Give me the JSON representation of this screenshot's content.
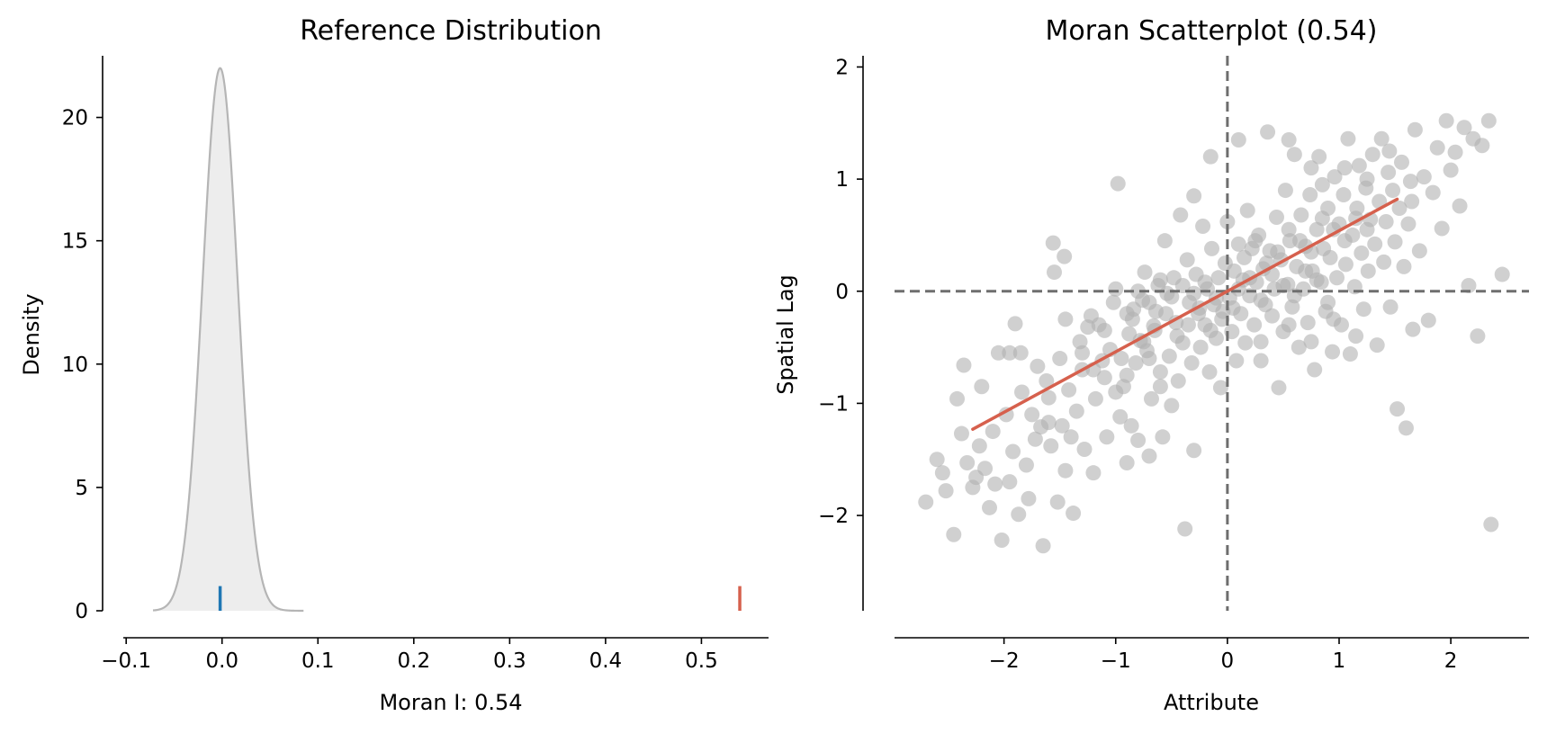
{
  "colors": {
    "kde_fill": "#ededed",
    "kde_line": "#b5b5b5",
    "expected_marker": "#1f77b4",
    "observed_marker": "#d6604d",
    "points": "#b0b0b0",
    "regression": "#d6604d",
    "mean_lines": "#6e6e6e"
  },
  "chart_data": [
    {
      "type": "area",
      "title": "Reference Distribution",
      "xlabel": "Moran I: 0.54",
      "ylabel": "Density",
      "xlim": [
        -0.103,
        0.57
      ],
      "ylim": [
        0,
        22.5
      ],
      "xticks": [
        -0.1,
        0.0,
        0.1,
        0.2,
        0.3,
        0.4,
        0.5
      ],
      "xtick_labels": [
        "−0.1",
        "0.0",
        "0.1",
        "0.2",
        "0.3",
        "0.4",
        "0.5"
      ],
      "yticks": [
        0,
        5,
        10,
        15,
        20
      ],
      "ytick_labels": [
        "0",
        "5",
        "10",
        "15",
        "20"
      ],
      "kde": {
        "mean": -0.002,
        "sd": 0.0183,
        "peak": 22.0,
        "x_min": -0.072,
        "x_max": 0.085
      },
      "markers": [
        {
          "name": "expected",
          "x": -0.002,
          "height": 1.0
        },
        {
          "name": "observed",
          "x": 0.54,
          "height": 1.0
        }
      ]
    },
    {
      "type": "scatter",
      "title": "Moran Scatterplot (0.54)",
      "xlabel": "Attribute",
      "ylabel": "Spatial Lag",
      "xlim": [
        -2.98,
        2.7
      ],
      "ylim": [
        -2.85,
        2.1
      ],
      "xticks": [
        -2,
        -1,
        0,
        1,
        2
      ],
      "xtick_labels": [
        "−2",
        "−1",
        "0",
        "1",
        "2"
      ],
      "yticks": [
        -2,
        -1,
        0,
        1,
        2
      ],
      "ytick_labels": [
        "−2",
        "−1",
        "0",
        "1",
        "2"
      ],
      "regression": {
        "slope": 0.54,
        "x_start": -2.28,
        "x_end": 1.52
      },
      "reference_lines": {
        "x": 0,
        "y": 0
      },
      "points": [
        [
          -2.7,
          -1.88
        ],
        [
          -2.6,
          -1.5
        ],
        [
          -2.55,
          -1.62
        ],
        [
          -2.52,
          -1.78
        ],
        [
          -2.45,
          -2.17
        ],
        [
          -2.42,
          -0.96
        ],
        [
          -2.38,
          -1.27
        ],
        [
          -2.36,
          -0.66
        ],
        [
          -2.33,
          -1.53
        ],
        [
          -2.28,
          -1.75
        ],
        [
          -2.25,
          -1.66
        ],
        [
          -2.22,
          -1.38
        ],
        [
          -2.2,
          -0.85
        ],
        [
          -2.17,
          -1.58
        ],
        [
          -2.13,
          -1.93
        ],
        [
          -2.08,
          -1.72
        ],
        [
          -2.05,
          -0.55
        ],
        [
          -2.02,
          -2.22
        ],
        [
          -1.98,
          -1.1
        ],
        [
          -1.95,
          -0.55
        ],
        [
          -1.92,
          -1.43
        ],
        [
          -1.9,
          -0.29
        ],
        [
          -1.87,
          -1.99
        ],
        [
          -1.84,
          -0.9
        ],
        [
          -1.8,
          -1.55
        ],
        [
          -1.78,
          -1.85
        ],
        [
          -1.75,
          -1.1
        ],
        [
          -1.72,
          -1.32
        ],
        [
          -1.7,
          -0.67
        ],
        [
          -1.67,
          -1.21
        ],
        [
          -1.65,
          -2.27
        ],
        [
          -1.62,
          -0.8
        ],
        [
          -1.6,
          -1.17
        ],
        [
          -1.58,
          -1.38
        ],
        [
          -1.56,
          0.43
        ],
        [
          -1.55,
          0.17
        ],
        [
          -1.52,
          -1.88
        ],
        [
          -1.5,
          -0.6
        ],
        [
          -1.48,
          -1.2
        ],
        [
          -1.46,
          0.31
        ],
        [
          -1.45,
          -0.25
        ],
        [
          -1.42,
          -0.88
        ],
        [
          -1.4,
          -1.3
        ],
        [
          -1.38,
          -1.98
        ],
        [
          -1.35,
          -1.07
        ],
        [
          -1.32,
          -0.45
        ],
        [
          -1.3,
          -0.7
        ],
        [
          -1.28,
          -1.41
        ],
        [
          -1.25,
          -0.32
        ],
        [
          -1.22,
          -0.22
        ],
        [
          -1.2,
          -1.62
        ],
        [
          -1.18,
          -0.96
        ],
        [
          -1.15,
          -0.3
        ],
        [
          -1.12,
          -0.62
        ],
        [
          -1.1,
          -0.77
        ],
        [
          -1.08,
          -1.3
        ],
        [
          -1.05,
          -0.52
        ],
        [
          -1.02,
          -0.1
        ],
        [
          -1.0,
          0.02
        ],
        [
          -0.98,
          0.96
        ],
        [
          -0.96,
          -1.12
        ],
        [
          -0.93,
          -0.85
        ],
        [
          -0.9,
          -1.53
        ],
        [
          -0.88,
          -0.38
        ],
        [
          -0.86,
          -1.2
        ],
        [
          -0.84,
          -0.16
        ],
        [
          -0.82,
          -0.64
        ],
        [
          -0.8,
          -1.33
        ],
        [
          -0.78,
          -0.44
        ],
        [
          -0.76,
          -0.08
        ],
        [
          -0.74,
          0.17
        ],
        [
          -0.72,
          -0.53
        ],
        [
          -0.7,
          -1.47
        ],
        [
          -0.68,
          -0.96
        ],
        [
          -0.66,
          -0.31
        ],
        [
          -0.64,
          -0.18
        ],
        [
          -0.62,
          0.05
        ],
        [
          -0.6,
          -0.72
        ],
        [
          -0.58,
          -1.3
        ],
        [
          -0.56,
          0.45
        ],
        [
          -0.54,
          -0.02
        ],
        [
          -0.52,
          -0.58
        ],
        [
          -0.5,
          -1.02
        ],
        [
          -0.48,
          0.12
        ],
        [
          -0.46,
          -0.28
        ],
        [
          -0.44,
          -0.8
        ],
        [
          -0.42,
          0.68
        ],
        [
          -0.4,
          -0.46
        ],
        [
          -0.38,
          -2.12
        ],
        [
          -0.36,
          0.28
        ],
        [
          -0.34,
          -0.1
        ],
        [
          -0.32,
          -0.64
        ],
        [
          -0.3,
          -1.42
        ],
        [
          -0.28,
          0.15
        ],
        [
          -0.26,
          -0.2
        ],
        [
          -0.24,
          -0.5
        ],
        [
          -0.22,
          0.58
        ],
        [
          -0.2,
          -0.3
        ],
        [
          -0.18,
          0.02
        ],
        [
          -0.16,
          -0.72
        ],
        [
          -0.14,
          0.38
        ],
        [
          -0.12,
          -0.12
        ],
        [
          -0.1,
          -0.42
        ],
        [
          -0.08,
          0.12
        ],
        [
          -0.06,
          -0.86
        ],
        [
          -0.04,
          -0.18
        ],
        [
          -0.02,
          0.25
        ],
        [
          0.0,
          0.62
        ],
        [
          0.02,
          -0.06
        ],
        [
          0.04,
          -0.36
        ],
        [
          0.06,
          0.18
        ],
        [
          0.08,
          -0.62
        ],
        [
          0.1,
          0.42
        ],
        [
          0.12,
          -0.2
        ],
        [
          0.14,
          0.1
        ],
        [
          0.16,
          -0.46
        ],
        [
          0.18,
          0.72
        ],
        [
          0.2,
          -0.04
        ],
        [
          0.22,
          0.38
        ],
        [
          0.24,
          -0.3
        ],
        [
          0.26,
          0.08
        ],
        [
          0.28,
          0.5
        ],
        [
          0.3,
          -0.62
        ],
        [
          0.32,
          0.2
        ],
        [
          0.34,
          -0.12
        ],
        [
          0.36,
          1.42
        ],
        [
          0.38,
          0.36
        ],
        [
          0.4,
          -0.22
        ],
        [
          0.42,
          0.02
        ],
        [
          0.44,
          0.66
        ],
        [
          0.46,
          -0.86
        ],
        [
          0.48,
          0.28
        ],
        [
          0.5,
          -0.36
        ],
        [
          0.52,
          0.9
        ],
        [
          0.54,
          0.06
        ],
        [
          0.56,
          0.45
        ],
        [
          0.58,
          -0.14
        ],
        [
          0.6,
          1.22
        ],
        [
          0.62,
          0.22
        ],
        [
          0.64,
          -0.5
        ],
        [
          0.66,
          0.68
        ],
        [
          0.68,
          0.02
        ],
        [
          0.7,
          0.4
        ],
        [
          0.72,
          -0.28
        ],
        [
          0.74,
          0.86
        ],
        [
          0.76,
          0.18
        ],
        [
          0.78,
          -0.7
        ],
        [
          0.8,
          0.55
        ],
        [
          0.82,
          1.2
        ],
        [
          0.84,
          0.08
        ],
        [
          0.86,
          0.38
        ],
        [
          0.88,
          -0.18
        ],
        [
          0.9,
          0.74
        ],
        [
          0.92,
          0.3
        ],
        [
          0.94,
          -0.54
        ],
        [
          0.96,
          1.02
        ],
        [
          0.98,
          0.12
        ],
        [
          1.0,
          0.6
        ],
        [
          1.02,
          -0.3
        ],
        [
          1.04,
          0.86
        ],
        [
          1.06,
          0.24
        ],
        [
          1.08,
          1.36
        ],
        [
          1.1,
          -0.56
        ],
        [
          1.12,
          0.5
        ],
        [
          1.14,
          0.04
        ],
        [
          1.16,
          0.74
        ],
        [
          1.18,
          1.12
        ],
        [
          1.2,
          0.34
        ],
        [
          1.22,
          -0.16
        ],
        [
          1.24,
          0.92
        ],
        [
          1.26,
          0.18
        ],
        [
          1.28,
          0.64
        ],
        [
          1.3,
          1.22
        ],
        [
          1.32,
          0.42
        ],
        [
          1.34,
          -0.48
        ],
        [
          1.36,
          0.8
        ],
        [
          1.38,
          1.36
        ],
        [
          1.4,
          0.26
        ],
        [
          1.42,
          0.62
        ],
        [
          1.44,
          1.06
        ],
        [
          1.46,
          -0.14
        ],
        [
          1.48,
          0.9
        ],
        [
          1.5,
          0.44
        ],
        [
          1.52,
          -1.05
        ],
        [
          1.54,
          0.74
        ],
        [
          1.56,
          1.15
        ],
        [
          1.58,
          0.22
        ],
        [
          1.6,
          -1.22
        ],
        [
          1.62,
          0.6
        ],
        [
          1.64,
          0.98
        ],
        [
          1.66,
          -0.34
        ],
        [
          1.68,
          1.44
        ],
        [
          1.72,
          0.36
        ],
        [
          1.76,
          1.02
        ],
        [
          1.8,
          -0.26
        ],
        [
          1.84,
          0.88
        ],
        [
          1.88,
          1.28
        ],
        [
          1.92,
          0.56
        ],
        [
          1.96,
          1.52
        ],
        [
          2.0,
          1.08
        ],
        [
          2.04,
          1.24
        ],
        [
          2.08,
          0.76
        ],
        [
          2.12,
          1.46
        ],
        [
          2.16,
          0.05
        ],
        [
          2.2,
          1.36
        ],
        [
          2.24,
          -0.4
        ],
        [
          2.28,
          1.3
        ],
        [
          2.34,
          1.52
        ],
        [
          2.36,
          -2.08
        ],
        [
          2.46,
          0.15
        ],
        [
          -0.9,
          -0.2
        ],
        [
          -0.8,
          0.0
        ],
        [
          -0.7,
          -0.1
        ],
        [
          -0.6,
          0.1
        ],
        [
          -0.5,
          -0.05
        ],
        [
          -0.4,
          0.05
        ],
        [
          -0.3,
          -0.02
        ],
        [
          -0.2,
          0.08
        ],
        [
          -0.1,
          -0.06
        ],
        [
          0.1,
          0.02
        ],
        [
          0.2,
          0.12
        ],
        [
          0.3,
          -0.08
        ],
        [
          0.4,
          0.15
        ],
        [
          0.5,
          0.05
        ],
        [
          0.6,
          -0.04
        ],
        [
          0.7,
          0.18
        ],
        [
          0.8,
          0.1
        ],
        [
          0.9,
          -0.1
        ],
        [
          -1.3,
          -0.55
        ],
        [
          -1.1,
          -0.35
        ],
        [
          -0.95,
          -0.6
        ],
        [
          -0.85,
          -0.25
        ],
        [
          -0.75,
          -0.45
        ],
        [
          -0.65,
          -0.35
        ],
        [
          -0.55,
          -0.2
        ],
        [
          -0.45,
          -0.4
        ],
        [
          -0.35,
          -0.3
        ],
        [
          -0.25,
          -0.15
        ],
        [
          -0.15,
          -0.35
        ],
        [
          -0.05,
          -0.25
        ],
        [
          0.05,
          -0.15
        ],
        [
          0.15,
          0.3
        ],
        [
          0.25,
          0.45
        ],
        [
          0.35,
          0.25
        ],
        [
          0.45,
          0.35
        ],
        [
          0.55,
          0.55
        ],
        [
          0.65,
          0.45
        ],
        [
          0.75,
          0.35
        ],
        [
          0.85,
          0.65
        ],
        [
          0.95,
          0.55
        ],
        [
          1.05,
          0.45
        ],
        [
          1.15,
          0.65
        ],
        [
          1.25,
          0.55
        ],
        [
          -1.2,
          -0.7
        ],
        [
          -1.0,
          -0.9
        ],
        [
          -0.9,
          -0.75
        ],
        [
          -0.7,
          -0.6
        ],
        [
          -0.6,
          -0.85
        ],
        [
          0.3,
          -0.45
        ],
        [
          0.55,
          -0.3
        ],
        [
          0.75,
          -0.45
        ],
        [
          0.95,
          -0.25
        ],
        [
          1.15,
          -0.4
        ],
        [
          0.85,
          0.95
        ],
        [
          1.05,
          1.1
        ],
        [
          1.25,
          1.0
        ],
        [
          1.45,
          1.25
        ],
        [
          1.65,
          0.8
        ],
        [
          -1.6,
          -0.95
        ],
        [
          -1.85,
          -0.55
        ],
        [
          -2.1,
          -1.25
        ],
        [
          -1.95,
          -1.7
        ],
        [
          -1.45,
          -1.6
        ],
        [
          -0.15,
          1.2
        ],
        [
          -0.3,
          0.85
        ],
        [
          0.1,
          1.35
        ],
        [
          0.55,
          1.35
        ],
        [
          0.75,
          1.1
        ]
      ]
    }
  ]
}
